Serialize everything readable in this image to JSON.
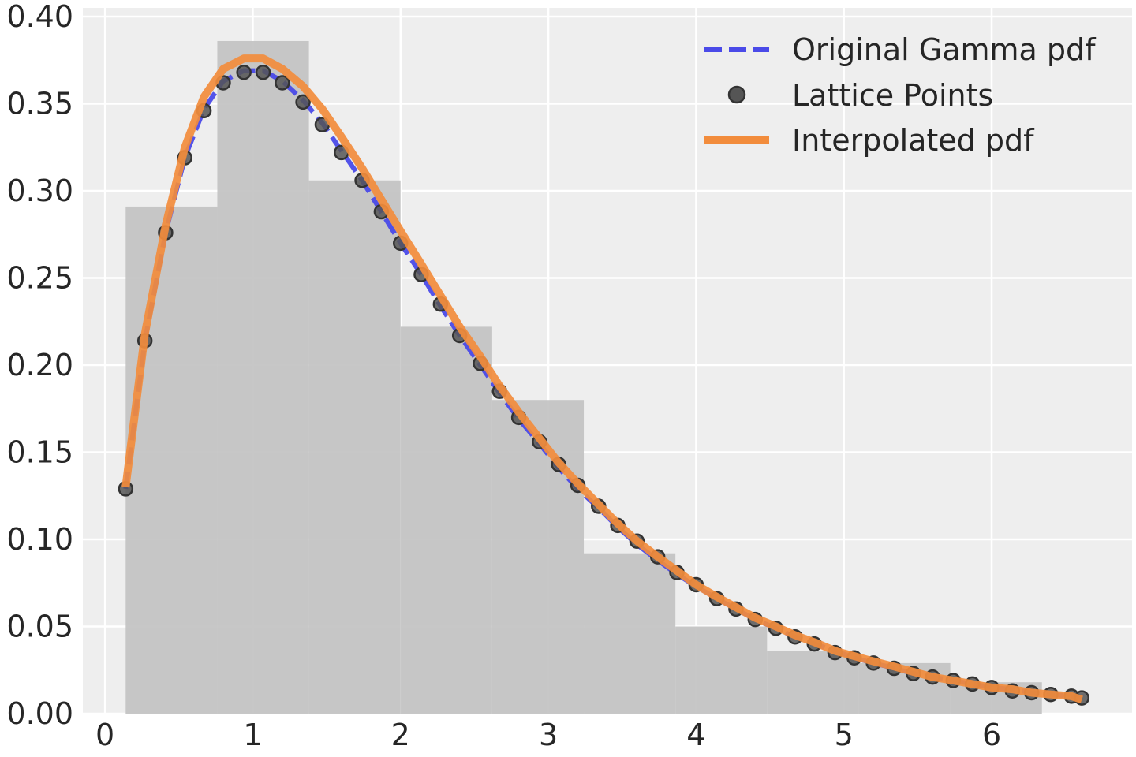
{
  "chart_data": {
    "type": "line",
    "title": "",
    "xlabel": "",
    "ylabel": "",
    "xlim": [
      -0.15,
      6.95
    ],
    "ylim": [
      0.0,
      0.405
    ],
    "xticks": [
      0,
      1,
      2,
      3,
      4,
      5,
      6
    ],
    "xtick_labels": [
      "0",
      "1",
      "2",
      "3",
      "4",
      "5",
      "6"
    ],
    "yticks": [
      0.0,
      0.05,
      0.1,
      0.15,
      0.2,
      0.25,
      0.3,
      0.35,
      0.4
    ],
    "ytick_labels": [
      "0.00",
      "0.05",
      "0.10",
      "0.15",
      "0.20",
      "0.25",
      "0.30",
      "0.35",
      "0.40"
    ],
    "grid": true,
    "legend_position": "top-right",
    "colors": {
      "background": "#eeeeee",
      "grid": "#ffffff",
      "histogram": "#c2c2c2",
      "original": "#4a4ae8",
      "points": "#555555",
      "interpolated": "#f28c3c"
    },
    "histogram": {
      "bin_edges": [
        0.14,
        0.76,
        1.38,
        2.0,
        2.62,
        3.24,
        3.86,
        4.48,
        5.1,
        5.72,
        6.34
      ],
      "heights": [
        0.291,
        0.386,
        0.306,
        0.222,
        0.18,
        0.092,
        0.05,
        0.036,
        0.029,
        0.018
      ]
    },
    "series": [
      {
        "name": "Original Gamma pdf",
        "style": "dashed",
        "x": [
          0.14,
          0.27,
          0.41,
          0.54,
          0.67,
          0.8,
          0.94,
          1.07,
          1.2,
          1.34,
          1.47,
          1.6,
          1.74,
          1.87,
          2.0,
          2.14,
          2.27,
          2.4,
          2.54,
          2.67,
          2.8,
          2.94,
          3.07,
          3.2,
          3.34,
          3.47,
          3.6,
          3.74,
          3.87,
          4.0,
          4.14,
          4.27,
          4.4,
          4.54,
          4.67,
          4.8,
          4.94,
          5.07,
          5.2,
          5.34,
          5.47,
          5.6,
          5.74,
          5.87,
          6.0,
          6.14,
          6.27,
          6.4,
          6.54,
          6.61
        ],
        "y": [
          0.129,
          0.214,
          0.276,
          0.319,
          0.347,
          0.363,
          0.369,
          0.369,
          0.363,
          0.352,
          0.339,
          0.323,
          0.306,
          0.288,
          0.27,
          0.252,
          0.234,
          0.217,
          0.2,
          0.184,
          0.169,
          0.155,
          0.141,
          0.129,
          0.118,
          0.107,
          0.097,
          0.088,
          0.08,
          0.073,
          0.066,
          0.06,
          0.054,
          0.049,
          0.044,
          0.04,
          0.036,
          0.032,
          0.029,
          0.026,
          0.023,
          0.021,
          0.019,
          0.017,
          0.015,
          0.014,
          0.012,
          0.011,
          0.01,
          0.009
        ]
      },
      {
        "name": "Lattice Points",
        "style": "markers",
        "x": [
          0.14,
          0.27,
          0.41,
          0.54,
          0.67,
          0.8,
          0.94,
          1.07,
          1.2,
          1.34,
          1.47,
          1.6,
          1.74,
          1.87,
          2.0,
          2.14,
          2.27,
          2.4,
          2.54,
          2.67,
          2.8,
          2.94,
          3.07,
          3.2,
          3.34,
          3.47,
          3.6,
          3.74,
          3.87,
          4.0,
          4.14,
          4.27,
          4.4,
          4.54,
          4.67,
          4.8,
          4.94,
          5.07,
          5.2,
          5.34,
          5.47,
          5.6,
          5.74,
          5.87,
          6.0,
          6.14,
          6.27,
          6.4,
          6.54,
          6.61
        ],
        "y": [
          0.129,
          0.214,
          0.276,
          0.319,
          0.346,
          0.362,
          0.368,
          0.368,
          0.362,
          0.351,
          0.338,
          0.322,
          0.306,
          0.288,
          0.27,
          0.252,
          0.235,
          0.217,
          0.201,
          0.185,
          0.17,
          0.156,
          0.143,
          0.131,
          0.119,
          0.108,
          0.099,
          0.09,
          0.081,
          0.074,
          0.066,
          0.06,
          0.054,
          0.049,
          0.044,
          0.04,
          0.035,
          0.032,
          0.029,
          0.026,
          0.023,
          0.021,
          0.019,
          0.017,
          0.015,
          0.013,
          0.012,
          0.011,
          0.01,
          0.009
        ]
      },
      {
        "name": "Interpolated pdf",
        "style": "solid",
        "x": [
          0.14,
          0.27,
          0.41,
          0.54,
          0.67,
          0.8,
          0.94,
          1.07,
          1.2,
          1.34,
          1.47,
          1.6,
          1.74,
          1.87,
          2.0,
          2.14,
          2.27,
          2.4,
          2.54,
          2.67,
          2.8,
          2.94,
          3.07,
          3.2,
          3.34,
          3.47,
          3.6,
          3.74,
          3.87,
          4.0,
          4.14,
          4.27,
          4.4,
          4.54,
          4.67,
          4.8,
          4.94,
          5.07,
          5.2,
          5.34,
          5.47,
          5.6,
          5.74,
          5.87,
          6.0,
          6.14,
          6.27,
          6.4,
          6.54,
          6.61
        ],
        "y": [
          0.13,
          0.218,
          0.28,
          0.325,
          0.354,
          0.37,
          0.376,
          0.376,
          0.37,
          0.36,
          0.347,
          0.331,
          0.313,
          0.295,
          0.277,
          0.258,
          0.24,
          0.222,
          0.205,
          0.188,
          0.173,
          0.158,
          0.144,
          0.132,
          0.12,
          0.109,
          0.099,
          0.09,
          0.082,
          0.074,
          0.067,
          0.061,
          0.055,
          0.05,
          0.045,
          0.041,
          0.036,
          0.033,
          0.03,
          0.027,
          0.024,
          0.021,
          0.019,
          0.017,
          0.015,
          0.014,
          0.012,
          0.011,
          0.01,
          0.008
        ]
      }
    ]
  }
}
